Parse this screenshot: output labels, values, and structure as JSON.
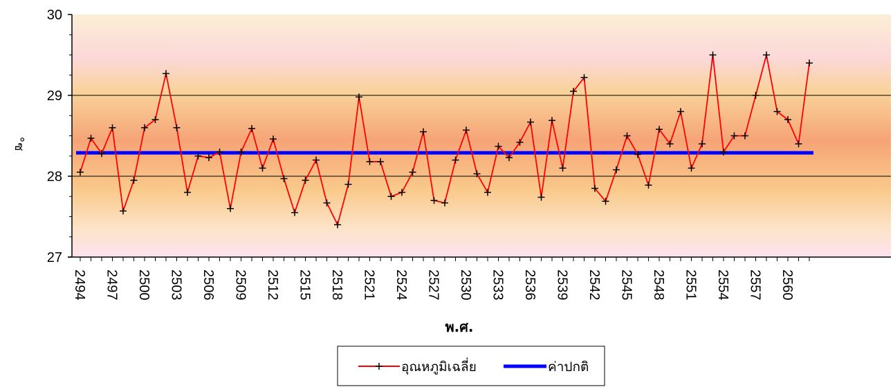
{
  "chart_data": {
    "type": "line",
    "title": "",
    "xlabel": "พ.ศ.",
    "ylabel": "°ซ",
    "ylim": [
      27,
      30
    ],
    "yticks": [
      27,
      28,
      29,
      30
    ],
    "gridlines": [
      28,
      29
    ],
    "x_tick_labels": [
      "2494",
      "2497",
      "2500",
      "2503",
      "2506",
      "2509",
      "2512",
      "2515",
      "2518",
      "2521",
      "2524",
      "2527",
      "2530",
      "2533",
      "2536",
      "2539",
      "2542",
      "2545",
      "2548",
      "2551",
      "2554",
      "2557",
      "2560"
    ],
    "x": [
      2494,
      2495,
      2496,
      2497,
      2498,
      2499,
      2500,
      2501,
      2502,
      2503,
      2504,
      2505,
      2506,
      2507,
      2508,
      2509,
      2510,
      2511,
      2512,
      2513,
      2514,
      2515,
      2516,
      2517,
      2518,
      2519,
      2520,
      2521,
      2522,
      2523,
      2524,
      2525,
      2526,
      2527,
      2528,
      2529,
      2530,
      2531,
      2532,
      2533,
      2534,
      2535,
      2536,
      2537,
      2538,
      2539,
      2540,
      2541,
      2542,
      2543,
      2544,
      2545,
      2546,
      2547,
      2548,
      2549,
      2550,
      2551,
      2552,
      2553,
      2554,
      2555,
      2556,
      2557,
      2558,
      2559,
      2560,
      2561,
      2562
    ],
    "series": [
      {
        "name": "อุณหภูมิเฉลี่ย",
        "color": "#ff0000",
        "marker": "plus",
        "values": [
          28.05,
          28.47,
          28.28,
          28.6,
          27.57,
          27.95,
          28.6,
          28.7,
          29.27,
          28.6,
          27.8,
          28.25,
          28.23,
          28.3,
          27.6,
          28.3,
          28.59,
          28.1,
          28.46,
          27.97,
          27.55,
          27.95,
          28.2,
          27.67,
          27.4,
          27.9,
          28.98,
          28.18,
          28.18,
          27.75,
          27.8,
          28.05,
          28.55,
          27.7,
          27.67,
          28.2,
          28.57,
          28.03,
          27.8,
          28.37,
          28.23,
          28.42,
          28.67,
          27.74,
          28.69,
          28.1,
          29.05,
          29.22,
          27.85,
          27.69,
          28.08,
          28.5,
          28.27,
          27.89,
          28.58,
          28.4,
          28.8,
          28.1,
          28.4,
          29.5,
          28.3,
          28.5,
          28.5,
          29.0,
          29.5,
          28.8,
          28.7,
          28.4,
          29.4
        ]
      },
      {
        "name": "ค่าปกติ",
        "color": "#0000ff",
        "constant": 28.29
      }
    ],
    "legend_position": "bottom-center",
    "background": "gradient: pale pink at top, orange/salmon band around the normal line, pale yellow-pink at bottom"
  }
}
